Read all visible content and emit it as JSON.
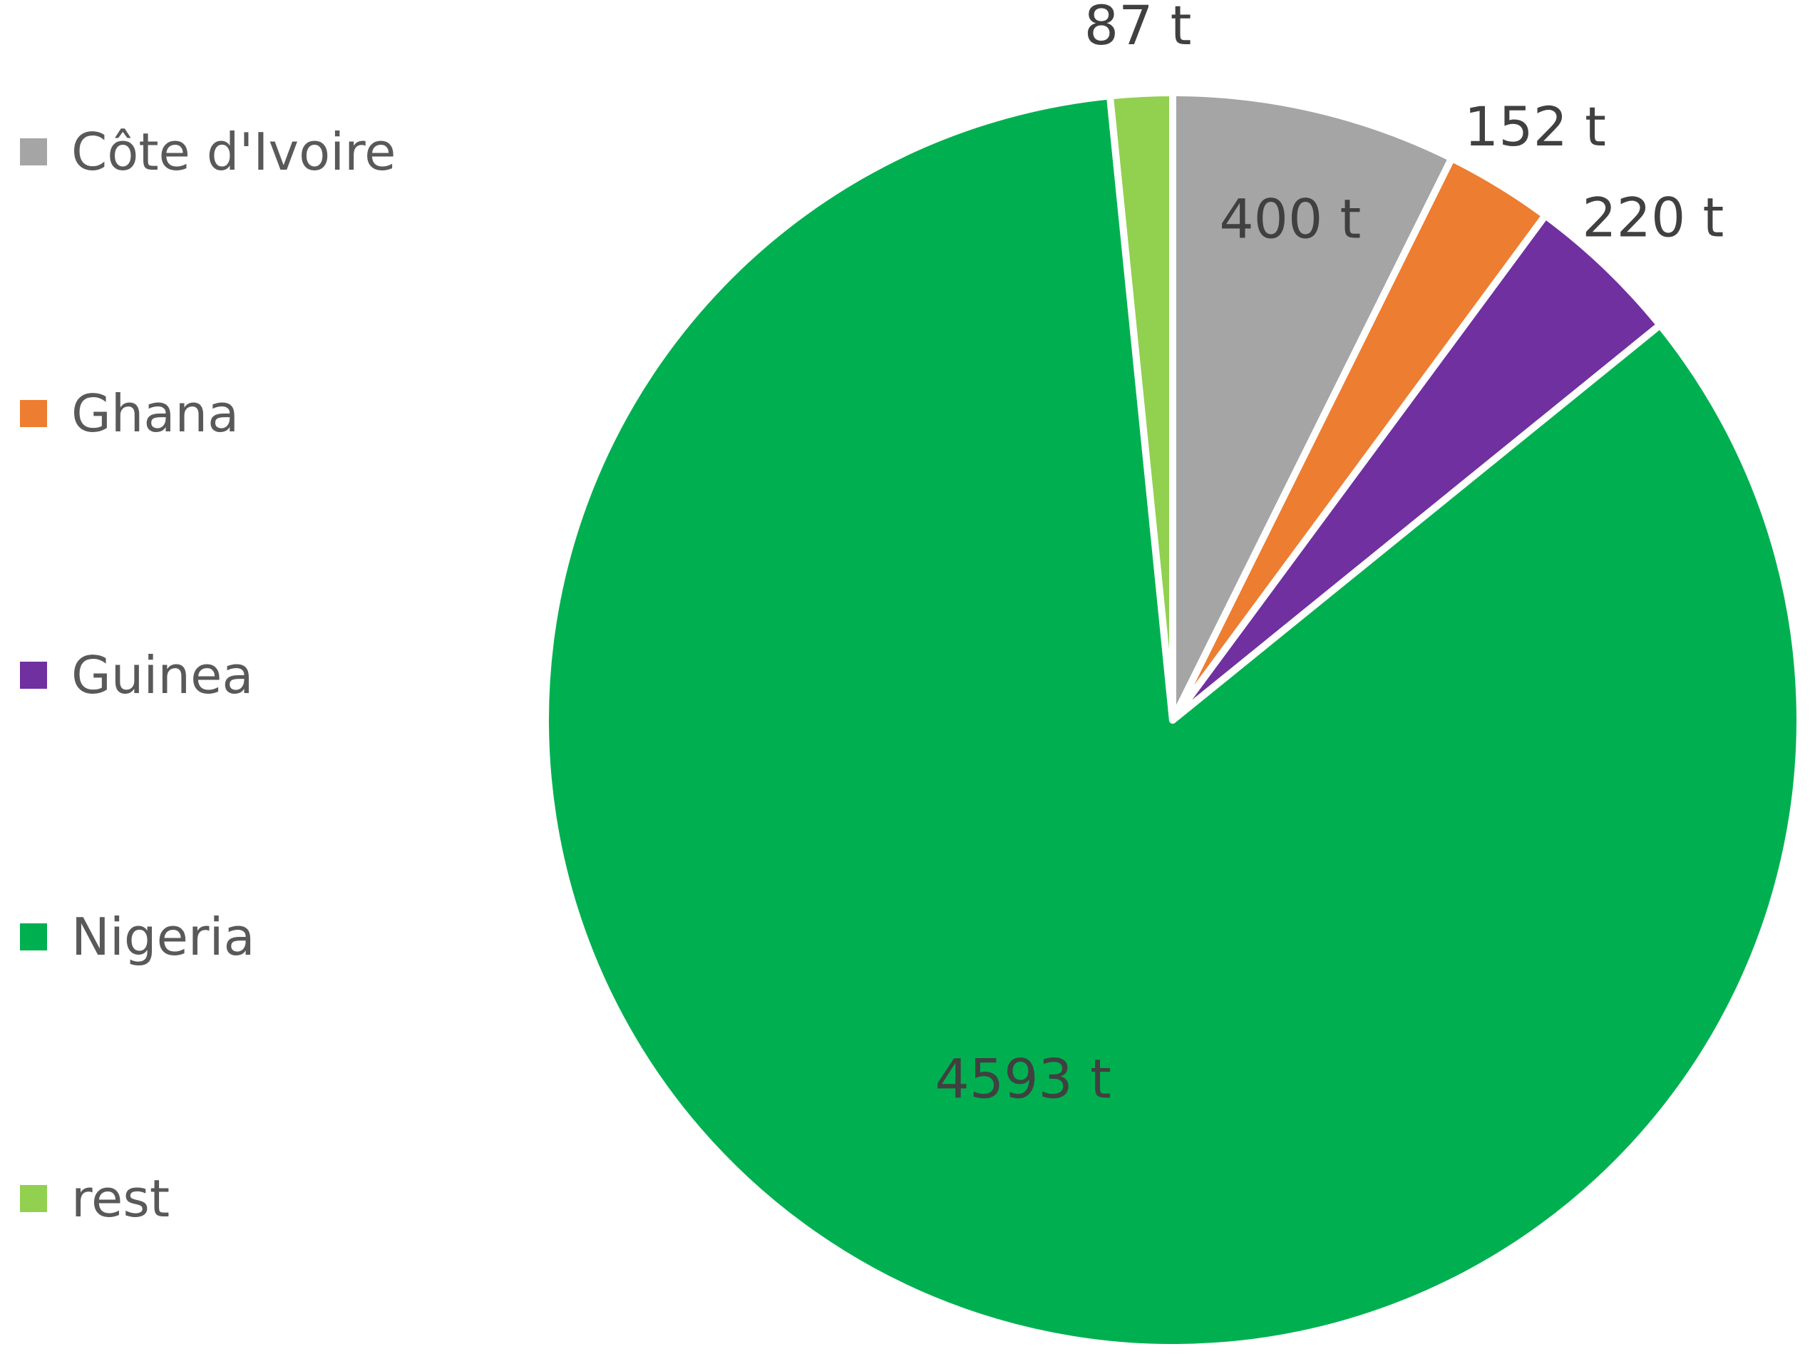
{
  "chart_data": {
    "type": "pie",
    "title": "",
    "unit": "t",
    "legend_position": "left",
    "slices": [
      {
        "name": "Côte d'Ivoire",
        "value": 400,
        "label": "400 t",
        "color": "#A5A5A5",
        "label_inside": true,
        "label_color": "#404040"
      },
      {
        "name": "Ghana",
        "value": 152,
        "label": "152 t",
        "color": "#ED7D31",
        "label_inside": false,
        "label_color": "#404040"
      },
      {
        "name": "Guinea",
        "value": 220,
        "label": "220 t",
        "color": "#7030A0",
        "label_inside": false,
        "label_color": "#404040"
      },
      {
        "name": "Nigeria",
        "value": 4593,
        "label": "4593 t",
        "color": "#00B050",
        "label_inside": true,
        "label_color": "#404040"
      },
      {
        "name": "rest",
        "value": 87,
        "label": "87 t",
        "color": "#92D050",
        "label_inside": false,
        "label_color": "#404040"
      }
    ]
  }
}
